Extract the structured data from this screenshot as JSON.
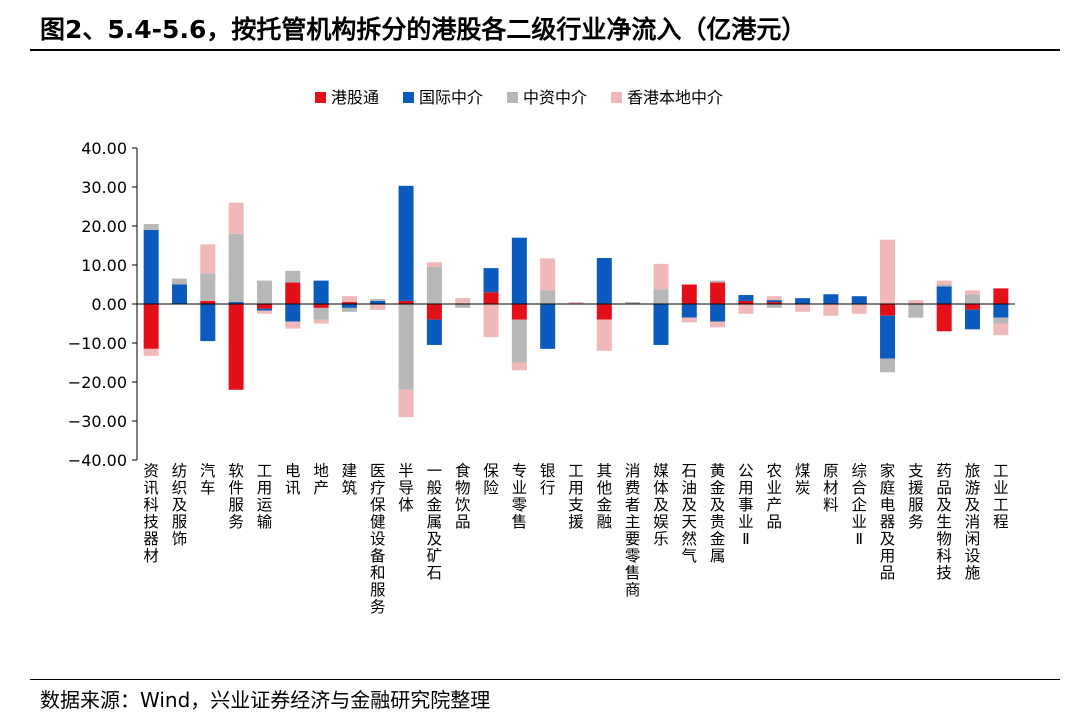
{
  "title": "图2、5.4-5.6，按托管机构拆分的港股各二级行业净流入（亿港元）",
  "source": "数据来源：Wind，兴业证券经济与金融研究院整理",
  "colors": {
    "港股通": "#e3101a",
    "国际中介": "#0a5bbd",
    "中资中介": "#b7b7b7",
    "香港本地中介": "#f0b8b8"
  },
  "chart_data": {
    "type": "bar",
    "stacked": true,
    "legend_position": "top",
    "grid": false,
    "ylim": [
      -40,
      40
    ],
    "yticks": [
      "40.00",
      "30.00",
      "20.00",
      "10.00",
      "0.00",
      "−10.00",
      "−20.00",
      "−30.00",
      "−40.00"
    ],
    "categories": [
      "资讯科技器材",
      "纺织及服饰",
      "汽车",
      "软件服务",
      "工用运输",
      "电讯",
      "地产",
      "建筑",
      "医疗保健设备和服务",
      "半导体",
      "一般金属及矿石",
      "食物饮品",
      "保险",
      "专业零售",
      "银行",
      "工用支援",
      "其他金融",
      "消费者主要零售商",
      "媒体及娱乐",
      "石油及天然气",
      "黄金及贵金属",
      "公用事业Ⅱ",
      "农业产品",
      "煤炭",
      "原材料",
      "综合企业Ⅱ",
      "家庭电器及用品",
      "支援服务",
      "药品及生物科技",
      "旅游及消闲设施",
      "工业工程"
    ],
    "series": [
      {
        "name": "港股通",
        "values": [
          -11.5,
          0,
          0.8,
          -22,
          -1.2,
          5.5,
          -1,
          0.5,
          0,
          0.8,
          -4,
          0,
          3,
          -4,
          0,
          0,
          -4,
          0,
          0,
          5,
          5.5,
          0.8,
          0.5,
          0,
          0,
          0,
          -3,
          0,
          -7,
          -1.5,
          4
        ]
      },
      {
        "name": "国际中介",
        "values": [
          19,
          5,
          -9.5,
          0.5,
          -0.5,
          -4.5,
          6,
          -1,
          0.8,
          29.5,
          -6.5,
          0,
          6.2,
          17,
          -11.5,
          0,
          11.8,
          0,
          -10.5,
          -3.5,
          -4.5,
          1.5,
          0.5,
          1.5,
          2.5,
          2,
          -11,
          0,
          4.5,
          -5,
          -3.5
        ]
      },
      {
        "name": "中资中介",
        "values": [
          1.5,
          1.5,
          7,
          17.5,
          6,
          3,
          -3,
          -1,
          0.5,
          -22,
          9.5,
          -1,
          0,
          -11,
          3.5,
          0,
          0,
          0.5,
          3.8,
          0,
          0.5,
          0,
          -1,
          0,
          0,
          0,
          -3.5,
          -3.5,
          0.5,
          2.5,
          -1.5
        ]
      },
      {
        "name": "香港本地中介",
        "values": [
          -1.8,
          0,
          7.5,
          8,
          -0.8,
          -1.8,
          -1,
          1.5,
          -1.5,
          -7,
          1.2,
          1.5,
          -8.5,
          -2,
          8.2,
          0.5,
          -8,
          0,
          6.5,
          -1.2,
          -1.5,
          -2.5,
          1,
          -2,
          -3,
          -2.5,
          16.5,
          1,
          1,
          1,
          -3
        ]
      }
    ]
  }
}
